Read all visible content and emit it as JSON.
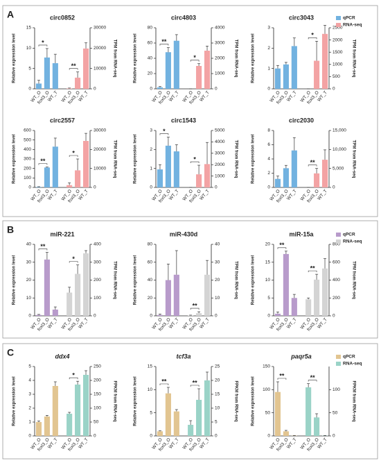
{
  "panels": [
    {
      "label": "A"
    },
    {
      "label": "B"
    },
    {
      "label": "C"
    }
  ],
  "chart_data": [
    {
      "type": "bar",
      "title": "circ0852",
      "ylabel": "Relative expression level",
      "y2label": "TPM from RNA-seq",
      "categories": [
        "WT_O",
        "foxl3_O",
        "WT_T"
      ],
      "ylim": [
        0,
        15
      ],
      "yticks": [
        0,
        5,
        10,
        15
      ],
      "y2lim": [
        0,
        30000
      ],
      "y2ticks": [
        0,
        10000,
        20000,
        30000
      ],
      "series": [
        {
          "name": "qPCR",
          "color": "#72b2e0",
          "values": [
            1.3,
            7.7,
            6.3
          ],
          "errors": [
            0.8,
            2.2,
            2.2
          ]
        },
        {
          "name": "RNA-seq",
          "color": "#f3a3a4",
          "axis": "y2",
          "values": [
            200,
            5500,
            19800
          ],
          "errors": [
            200,
            2800,
            2800
          ]
        }
      ],
      "annotations": [
        {
          "text": "*",
          "series": 0,
          "from": 0,
          "to": 1
        },
        {
          "text": "**",
          "series": 1,
          "from": 0,
          "to": 1
        }
      ]
    },
    {
      "type": "bar",
      "title": "circ4803",
      "ylabel": "Relative expression level",
      "y2label": "TPM from RNA-seq",
      "categories": [
        "WT_O",
        "foxl3_O",
        "WT_T"
      ],
      "ylim": [
        0,
        80
      ],
      "yticks": [
        0,
        20,
        40,
        60,
        80
      ],
      "y2lim": [
        0,
        4000
      ],
      "y2ticks": [
        0,
        1000,
        2000,
        3000,
        4000
      ],
      "series": [
        {
          "name": "qPCR",
          "color": "#72b2e0",
          "values": [
            2,
            48,
            63
          ],
          "errors": [
            1,
            6,
            8
          ]
        },
        {
          "name": "RNA-seq",
          "color": "#f3a3a4",
          "axis": "y2",
          "values": [
            0,
            1500,
            2500
          ],
          "errors": [
            0,
            150,
            300
          ]
        }
      ],
      "annotations": [
        {
          "text": "**",
          "series": 0,
          "from": 0,
          "to": 1
        },
        {
          "text": "*",
          "series": 1,
          "from": 0,
          "to": 1
        }
      ]
    },
    {
      "type": "bar",
      "title": "circ3043",
      "ylabel": "Relative expression level",
      "y2label": "TPM from RNA-seq",
      "categories": [
        "WT_O",
        "foxl3_O",
        "WT_T"
      ],
      "ylim": [
        0,
        3
      ],
      "yticks": [
        0,
        1,
        2,
        3
      ],
      "y2lim": [
        0,
        2500
      ],
      "y2ticks": [
        0,
        500,
        1000,
        1500,
        2000,
        2500
      ],
      "legend": "upper right",
      "series": [
        {
          "name": "qPCR",
          "color": "#72b2e0",
          "values": [
            1.0,
            1.2,
            2.1
          ],
          "errors": [
            0.15,
            0.1,
            0.4
          ]
        },
        {
          "name": "RNA-seq",
          "color": "#f3a3a4",
          "axis": "y2",
          "values": [
            0,
            1150,
            2250
          ],
          "errors": [
            0,
            800,
            350
          ]
        }
      ],
      "annotations": [
        {
          "text": "*",
          "series": 1,
          "from": 0,
          "to": 1
        }
      ]
    },
    {
      "type": "bar",
      "title": "circ2557",
      "ylabel": "Relative expression level",
      "y2label": "TPM from RNA-seq",
      "categories": [
        "WT_O",
        "foxl3_O",
        "WT_T"
      ],
      "ylim": [
        0,
        600
      ],
      "yticks": [
        0,
        100,
        200,
        300,
        400,
        500,
        600
      ],
      "y2lim": [
        0,
        30000
      ],
      "y2ticks": [
        0,
        10000,
        20000,
        30000
      ],
      "series": [
        {
          "name": "qPCR",
          "color": "#72b2e0",
          "values": [
            5,
            210,
            430
          ],
          "errors": [
            3,
            5,
            90
          ]
        },
        {
          "name": "RNA-seq",
          "color": "#f3a3a4",
          "axis": "y2",
          "values": [
            1200,
            9000,
            24500
          ],
          "errors": [
            1200,
            6000,
            4000
          ]
        }
      ],
      "annotations": [
        {
          "text": "**",
          "series": 0,
          "from": 0,
          "to": 1
        },
        {
          "text": "*",
          "series": 1,
          "from": 0,
          "to": 1
        }
      ]
    },
    {
      "type": "bar",
      "title": "circ1543",
      "ylabel": "Relative expression level",
      "y2label": "TPM from RNA-seq",
      "categories": [
        "WT_O",
        "foxl3_O",
        "WT_T"
      ],
      "ylim": [
        0,
        3
      ],
      "yticks": [
        0,
        1,
        2,
        3
      ],
      "y2lim": [
        0,
        5000
      ],
      "y2ticks": [
        0,
        1000,
        2000,
        3000,
        4000,
        5000
      ],
      "series": [
        {
          "name": "qPCR",
          "color": "#72b2e0",
          "values": [
            0.95,
            2.2,
            1.9
          ],
          "errors": [
            0.25,
            0.45,
            0.35
          ]
        },
        {
          "name": "RNA-seq",
          "color": "#f3a3a4",
          "axis": "y2",
          "values": [
            0,
            1150,
            2050
          ],
          "errors": [
            0,
            800,
            1900
          ]
        }
      ],
      "annotations": [
        {
          "text": "*",
          "series": 0,
          "from": 0,
          "to": 1
        },
        {
          "text": "*",
          "series": 1,
          "from": 0,
          "to": 1
        }
      ]
    },
    {
      "type": "bar",
      "title": "circ2030",
      "ylabel": "Relative expression level",
      "y2label": "TPM from RNA-seq",
      "categories": [
        "WT_O",
        "foxl3_O",
        "WT_T"
      ],
      "ylim": [
        0,
        8
      ],
      "yticks": [
        0,
        2,
        4,
        6,
        8
      ],
      "y2lim": [
        0,
        15000
      ],
      "y2ticks": [
        0,
        {
          "value": 5000,
          "label": "5,000"
        },
        {
          "value": 10000,
          "label": "10,000"
        },
        {
          "value": 15000,
          "label": "15,000"
        }
      ],
      "series": [
        {
          "name": "qPCR",
          "color": "#72b2e0",
          "values": [
            1.2,
            2.7,
            5.2
          ],
          "errors": [
            0.4,
            0.4,
            1.8
          ]
        },
        {
          "name": "RNA-seq",
          "color": "#f3a3a4",
          "axis": "y2",
          "values": [
            0,
            3700,
            7300
          ],
          "errors": [
            0,
            1300,
            2600
          ]
        }
      ],
      "annotations": [
        {
          "text": "**",
          "series": 1,
          "from": 0,
          "to": 1
        }
      ]
    },
    {
      "type": "bar",
      "title": "miR-221",
      "ylabel": "Relative expression level",
      "y2label": "TPM from RNA-seq",
      "categories": [
        "WT_O",
        "foxl3_O",
        "WT_T"
      ],
      "ylim": [
        0,
        40
      ],
      "yticks": [
        0,
        10,
        20,
        30,
        40
      ],
      "y2lim": [
        0,
        400
      ],
      "y2ticks": [
        0,
        100,
        200,
        300,
        400
      ],
      "series": [
        {
          "name": "qPCR",
          "color": "#b89bcb",
          "values": [
            0.5,
            31.5,
            3.5
          ],
          "errors": [
            0.3,
            4,
            1.5
          ]
        },
        {
          "name": "RNA-seq",
          "color": "#d4d4d4",
          "axis": "y2",
          "values": [
            130,
            235,
            350
          ],
          "errors": [
            30,
            50,
            15
          ]
        }
      ],
      "annotations": [
        {
          "text": "**",
          "series": 0,
          "from": 0,
          "to": 1
        },
        {
          "text": "*",
          "series": 1,
          "from": 0,
          "to": 1
        }
      ]
    },
    {
      "type": "bar",
      "title": "miR-430d",
      "ylabel": "Relative expression level",
      "y2label": "TPM from RNA-seq",
      "categories": [
        "WT_O",
        "foxl3_O",
        "WT_T"
      ],
      "ylim": [
        0,
        80
      ],
      "yticks": [
        0,
        20,
        40,
        60,
        80
      ],
      "y2lim": [
        0,
        40
      ],
      "y2ticks": [
        0,
        10,
        20,
        30,
        40
      ],
      "series": [
        {
          "name": "qPCR",
          "color": "#b89bcb",
          "values": [
            1,
            40,
            46
          ],
          "errors": [
            1,
            18,
            27
          ]
        },
        {
          "name": "RNA-seq",
          "color": "#d4d4d4",
          "axis": "y2",
          "values": [
            0.2,
            1.5,
            23
          ],
          "errors": [
            0.2,
            0.8,
            8
          ]
        }
      ],
      "annotations": [
        {
          "text": "**",
          "series": 1,
          "from": 0,
          "to": 1
        }
      ]
    },
    {
      "type": "bar",
      "title": "miR-15a",
      "ylabel": "Relative expression level",
      "y2label": "TPM from RNA-seq",
      "categories": [
        "WT_O",
        "foxl3_O",
        "WT_T"
      ],
      "ylim": [
        0,
        20
      ],
      "yticks": [
        0,
        5,
        10,
        15,
        20
      ],
      "y2lim": [
        0,
        800
      ],
      "y2ticks": [
        0,
        200,
        400,
        600,
        800
      ],
      "legend": "upper right",
      "series": [
        {
          "name": "qPCR",
          "color": "#b89bcb",
          "values": [
            0.6,
            17.3,
            5
          ],
          "errors": [
            0.5,
            0.8,
            1
          ]
        },
        {
          "name": "RNA-seq",
          "color": "#d4d4d4",
          "axis": "y2",
          "values": [
            185,
            405,
            530
          ],
          "errors": [
            15,
            60,
            110
          ]
        }
      ],
      "annotations": [
        {
          "text": "**",
          "series": 0,
          "from": 0,
          "to": 1
        },
        {
          "text": "**",
          "series": 1,
          "from": 0,
          "to": 1
        }
      ]
    },
    {
      "type": "bar",
      "title": "ddx4",
      "title_style": "italic",
      "ylabel": "Relative expression level",
      "y2label": "FPKM from RNA-seq",
      "categories": [
        "WT_O",
        "foxl3_O",
        "WT_T"
      ],
      "ylim": [
        0,
        5
      ],
      "yticks": [
        0,
        1,
        2,
        3,
        4,
        5
      ],
      "y2lim": [
        0,
        250
      ],
      "y2ticks": [
        0,
        50,
        100,
        150,
        200,
        250
      ],
      "series": [
        {
          "name": "qPCR",
          "color": "#e2c591",
          "values": [
            1.0,
            1.4,
            3.6
          ],
          "errors": [
            0.08,
            0.08,
            0.3
          ]
        },
        {
          "name": "RNA-seq",
          "color": "#9ad3c7",
          "axis": "y2",
          "values": [
            80,
            185,
            220
          ],
          "errors": [
            5,
            12,
            15
          ]
        }
      ],
      "annotations": [
        {
          "text": "*",
          "series": 1,
          "from": 0,
          "to": 1
        }
      ]
    },
    {
      "type": "bar",
      "title": "tcf3a",
      "title_style": "italic",
      "ylabel": "Relative expression level",
      "y2label": "FPKM from RNA-seq",
      "categories": [
        "WT_O",
        "foxl3_O",
        "WT_T"
      ],
      "ylim": [
        0,
        15
      ],
      "yticks": [
        0,
        5,
        10,
        15
      ],
      "y2lim": [
        0,
        25
      ],
      "y2ticks": [
        0,
        5,
        10,
        15,
        20,
        25
      ],
      "series": [
        {
          "name": "qPCR",
          "color": "#e2c591",
          "values": [
            1,
            9.2,
            5.3
          ],
          "errors": [
            0.1,
            1.3,
            0.4
          ]
        },
        {
          "name": "RNA-seq",
          "color": "#9ad3c7",
          "axis": "y2",
          "values": [
            4,
            13,
            20
          ],
          "errors": [
            1.5,
            4,
            3
          ]
        }
      ],
      "annotations": [
        {
          "text": "**",
          "series": 0,
          "from": 0,
          "to": 1
        },
        {
          "text": "**",
          "series": 1,
          "from": 0,
          "to": 1
        }
      ]
    },
    {
      "type": "bar",
      "title": "paqr5a",
      "title_style": "italic",
      "ylabel": "Relative expression level",
      "y2label": "FPKM from RNA-seq",
      "categories": [
        "WT_O",
        "foxl3_O",
        "WT_T"
      ],
      "ylim": [
        0,
        150
      ],
      "yticks": [
        0,
        50,
        100,
        150
      ],
      "y2lim": [
        0,
        150
      ],
      "y2ticks": [
        0,
        50,
        100
      ],
      "legend": "upper right",
      "series": [
        {
          "name": "qPCR",
          "color": "#e2c591",
          "values": [
            95,
            10,
            0.5
          ],
          "errors": [
            22,
            2,
            0.5
          ]
        },
        {
          "name": "RNA-seq",
          "color": "#9ad3c7",
          "axis": "y2",
          "values": [
            105,
            40,
            0.5
          ],
          "errors": [
            8,
            8,
            0.5
          ]
        }
      ],
      "annotations": [
        {
          "text": "**",
          "series": 0,
          "from": 0,
          "to": 1
        },
        {
          "text": "**",
          "series": 1,
          "from": 0,
          "to": 1
        }
      ]
    }
  ]
}
